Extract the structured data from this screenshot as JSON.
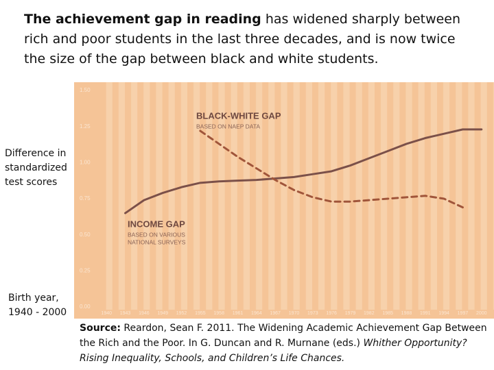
{
  "chart_data": {
    "type": "line",
    "title": {
      "emphasis": "The achievement gap in reading",
      "rest": " has widened sharply between rich and poor students in the last three decades, and is now twice the size of the gap between black and white students."
    },
    "ylabel": "Difference in standardized test scores",
    "xlabel": "Birth year, 1940 - 2000",
    "xlim": [
      1938,
      2002
    ],
    "xticks": [
      1940,
      1943,
      1946,
      1949,
      1952,
      1955,
      1958,
      1961,
      1964,
      1967,
      1970,
      1973,
      1976,
      1979,
      1982,
      1985,
      1988,
      1991,
      1994,
      1997,
      2000
    ],
    "ylim": [
      0,
      1.5
    ],
    "yticks": [
      {
        "value": 0,
        "label": "0.00"
      },
      0.25,
      {
        "value": 0.5,
        "label": "0.50"
      },
      0.75,
      {
        "value": 1,
        "label": "1.00"
      },
      1.25,
      {
        "value": 1.5,
        "label": "1.50"
      }
    ],
    "series": [
      {
        "name": "INCOME GAP",
        "note": [
          "BASED ON VARIOUS",
          "NATIONAL SURVEYS"
        ],
        "color": "#7b5049",
        "dashed": false,
        "x": [
          1943,
          1946,
          1949,
          1952,
          1955,
          1958,
          1961,
          1964,
          1967,
          1970,
          1973,
          1976,
          1979,
          1982,
          1985,
          1988,
          1991,
          1994,
          1997,
          2000
        ],
        "values": [
          0.65,
          0.74,
          0.79,
          0.83,
          0.86,
          0.87,
          0.875,
          0.88,
          0.89,
          0.9,
          0.92,
          0.94,
          0.98,
          1.03,
          1.08,
          1.13,
          1.17,
          1.2,
          1.23,
          1.23
        ]
      },
      {
        "name": "BLACK-WHITE GAP",
        "note": [
          "BASED ON NAEP DATA"
        ],
        "color": "#a0553a",
        "dashed": true,
        "x": [
          1955,
          1958,
          1961,
          1964,
          1967,
          1970,
          1973,
          1976,
          1979,
          1982,
          1985,
          1988,
          1991,
          1994,
          1997
        ],
        "values": [
          1.22,
          1.13,
          1.04,
          0.96,
          0.88,
          0.81,
          0.76,
          0.73,
          0.73,
          0.74,
          0.75,
          0.76,
          0.77,
          0.75,
          0.69
        ]
      }
    ],
    "source": {
      "label": "Source:",
      "text": " Reardon, Sean F. 2011. The Widening Academic Achievement Gap Between the Rich and the Poor. In G. Duncan and R. Murnane (eds.) ",
      "italic": "Whither Opportunity? Rising Inequality, Schools, and Children’s Life Chances."
    }
  }
}
